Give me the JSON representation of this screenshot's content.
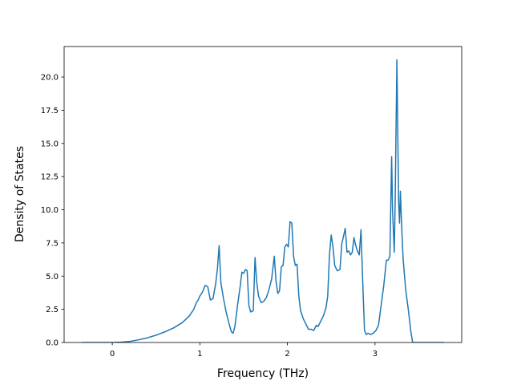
{
  "chart_data": {
    "type": "line",
    "title": "",
    "xlabel": "Frequency (THz)",
    "ylabel": "Density of States",
    "xlim": [
      -0.55,
      3.99
    ],
    "ylim": [
      0.0,
      22.3
    ],
    "grid": false,
    "legend": "none",
    "xticks": [
      0,
      1,
      2,
      3
    ],
    "xtick_labels": [
      "0",
      "1",
      "2",
      "3"
    ],
    "yticks": [
      0.0,
      2.5,
      5.0,
      7.5,
      10.0,
      12.5,
      15.0,
      17.5,
      20.0
    ],
    "ytick_labels": [
      "0.0",
      "2.5",
      "5.0",
      "7.5",
      "10.0",
      "12.5",
      "15.0",
      "17.5",
      "20.0"
    ],
    "series": [
      {
        "color": "#1f77b4",
        "x": [
          -0.35,
          0.0,
          0.1,
          0.2,
          0.3,
          0.4,
          0.5,
          0.6,
          0.7,
          0.8,
          0.88,
          0.93,
          0.96,
          0.98,
          1.0,
          1.03,
          1.06,
          1.09,
          1.12,
          1.15,
          1.18,
          1.2,
          1.22,
          1.24,
          1.27,
          1.3,
          1.33,
          1.36,
          1.38,
          1.4,
          1.43,
          1.46,
          1.48,
          1.5,
          1.52,
          1.54,
          1.56,
          1.58,
          1.61,
          1.63,
          1.65,
          1.67,
          1.7,
          1.73,
          1.76,
          1.79,
          1.82,
          1.85,
          1.87,
          1.89,
          1.91,
          1.93,
          1.95,
          1.97,
          1.99,
          2.01,
          2.03,
          2.05,
          2.07,
          2.09,
          2.11,
          2.13,
          2.15,
          2.18,
          2.21,
          2.24,
          2.27,
          2.3,
          2.33,
          2.35,
          2.38,
          2.41,
          2.44,
          2.46,
          2.48,
          2.5,
          2.52,
          2.54,
          2.57,
          2.6,
          2.62,
          2.64,
          2.66,
          2.68,
          2.7,
          2.72,
          2.74,
          2.76,
          2.78,
          2.8,
          2.82,
          2.84,
          2.86,
          2.88,
          2.9,
          2.92,
          2.95,
          2.98,
          3.01,
          3.04,
          3.07,
          3.1,
          3.13,
          3.15,
          3.17,
          3.19,
          3.2,
          3.22,
          3.23,
          3.24,
          3.25,
          3.27,
          3.28,
          3.29,
          3.3,
          3.32,
          3.35,
          3.38,
          3.41,
          3.43,
          3.45,
          3.5,
          3.6,
          3.7,
          3.79
        ],
        "y": [
          0.0,
          0.0,
          0.02,
          0.08,
          0.2,
          0.35,
          0.55,
          0.8,
          1.1,
          1.5,
          2.0,
          2.5,
          3.0,
          3.2,
          3.5,
          3.8,
          4.3,
          4.2,
          3.2,
          3.3,
          4.4,
          5.5,
          7.3,
          4.5,
          3.3,
          2.3,
          1.5,
          0.8,
          0.7,
          1.2,
          2.8,
          4.2,
          5.3,
          5.2,
          5.5,
          5.4,
          2.8,
          2.3,
          2.4,
          6.4,
          4.5,
          3.5,
          3.0,
          3.1,
          3.4,
          4.0,
          4.8,
          6.5,
          4.6,
          3.7,
          3.9,
          5.7,
          5.8,
          7.2,
          7.4,
          7.2,
          9.1,
          9.0,
          6.5,
          5.8,
          5.9,
          3.5,
          2.4,
          1.8,
          1.4,
          1.0,
          1.0,
          0.9,
          1.3,
          1.2,
          1.6,
          2.0,
          2.6,
          3.5,
          6.6,
          8.1,
          7.2,
          5.8,
          5.4,
          5.5,
          7.4,
          8.0,
          8.6,
          6.8,
          6.9,
          6.6,
          6.8,
          7.9,
          7.3,
          6.9,
          6.6,
          8.5,
          4.5,
          0.9,
          0.6,
          0.7,
          0.6,
          0.7,
          0.9,
          1.3,
          2.8,
          4.3,
          6.2,
          6.2,
          6.5,
          14.0,
          10.0,
          6.8,
          10.5,
          16.0,
          21.3,
          10.5,
          9.0,
          11.4,
          9.5,
          6.4,
          4.0,
          2.5,
          0.8,
          0.0,
          0.0,
          0.0,
          0.0,
          0.0,
          0.0
        ]
      }
    ]
  }
}
